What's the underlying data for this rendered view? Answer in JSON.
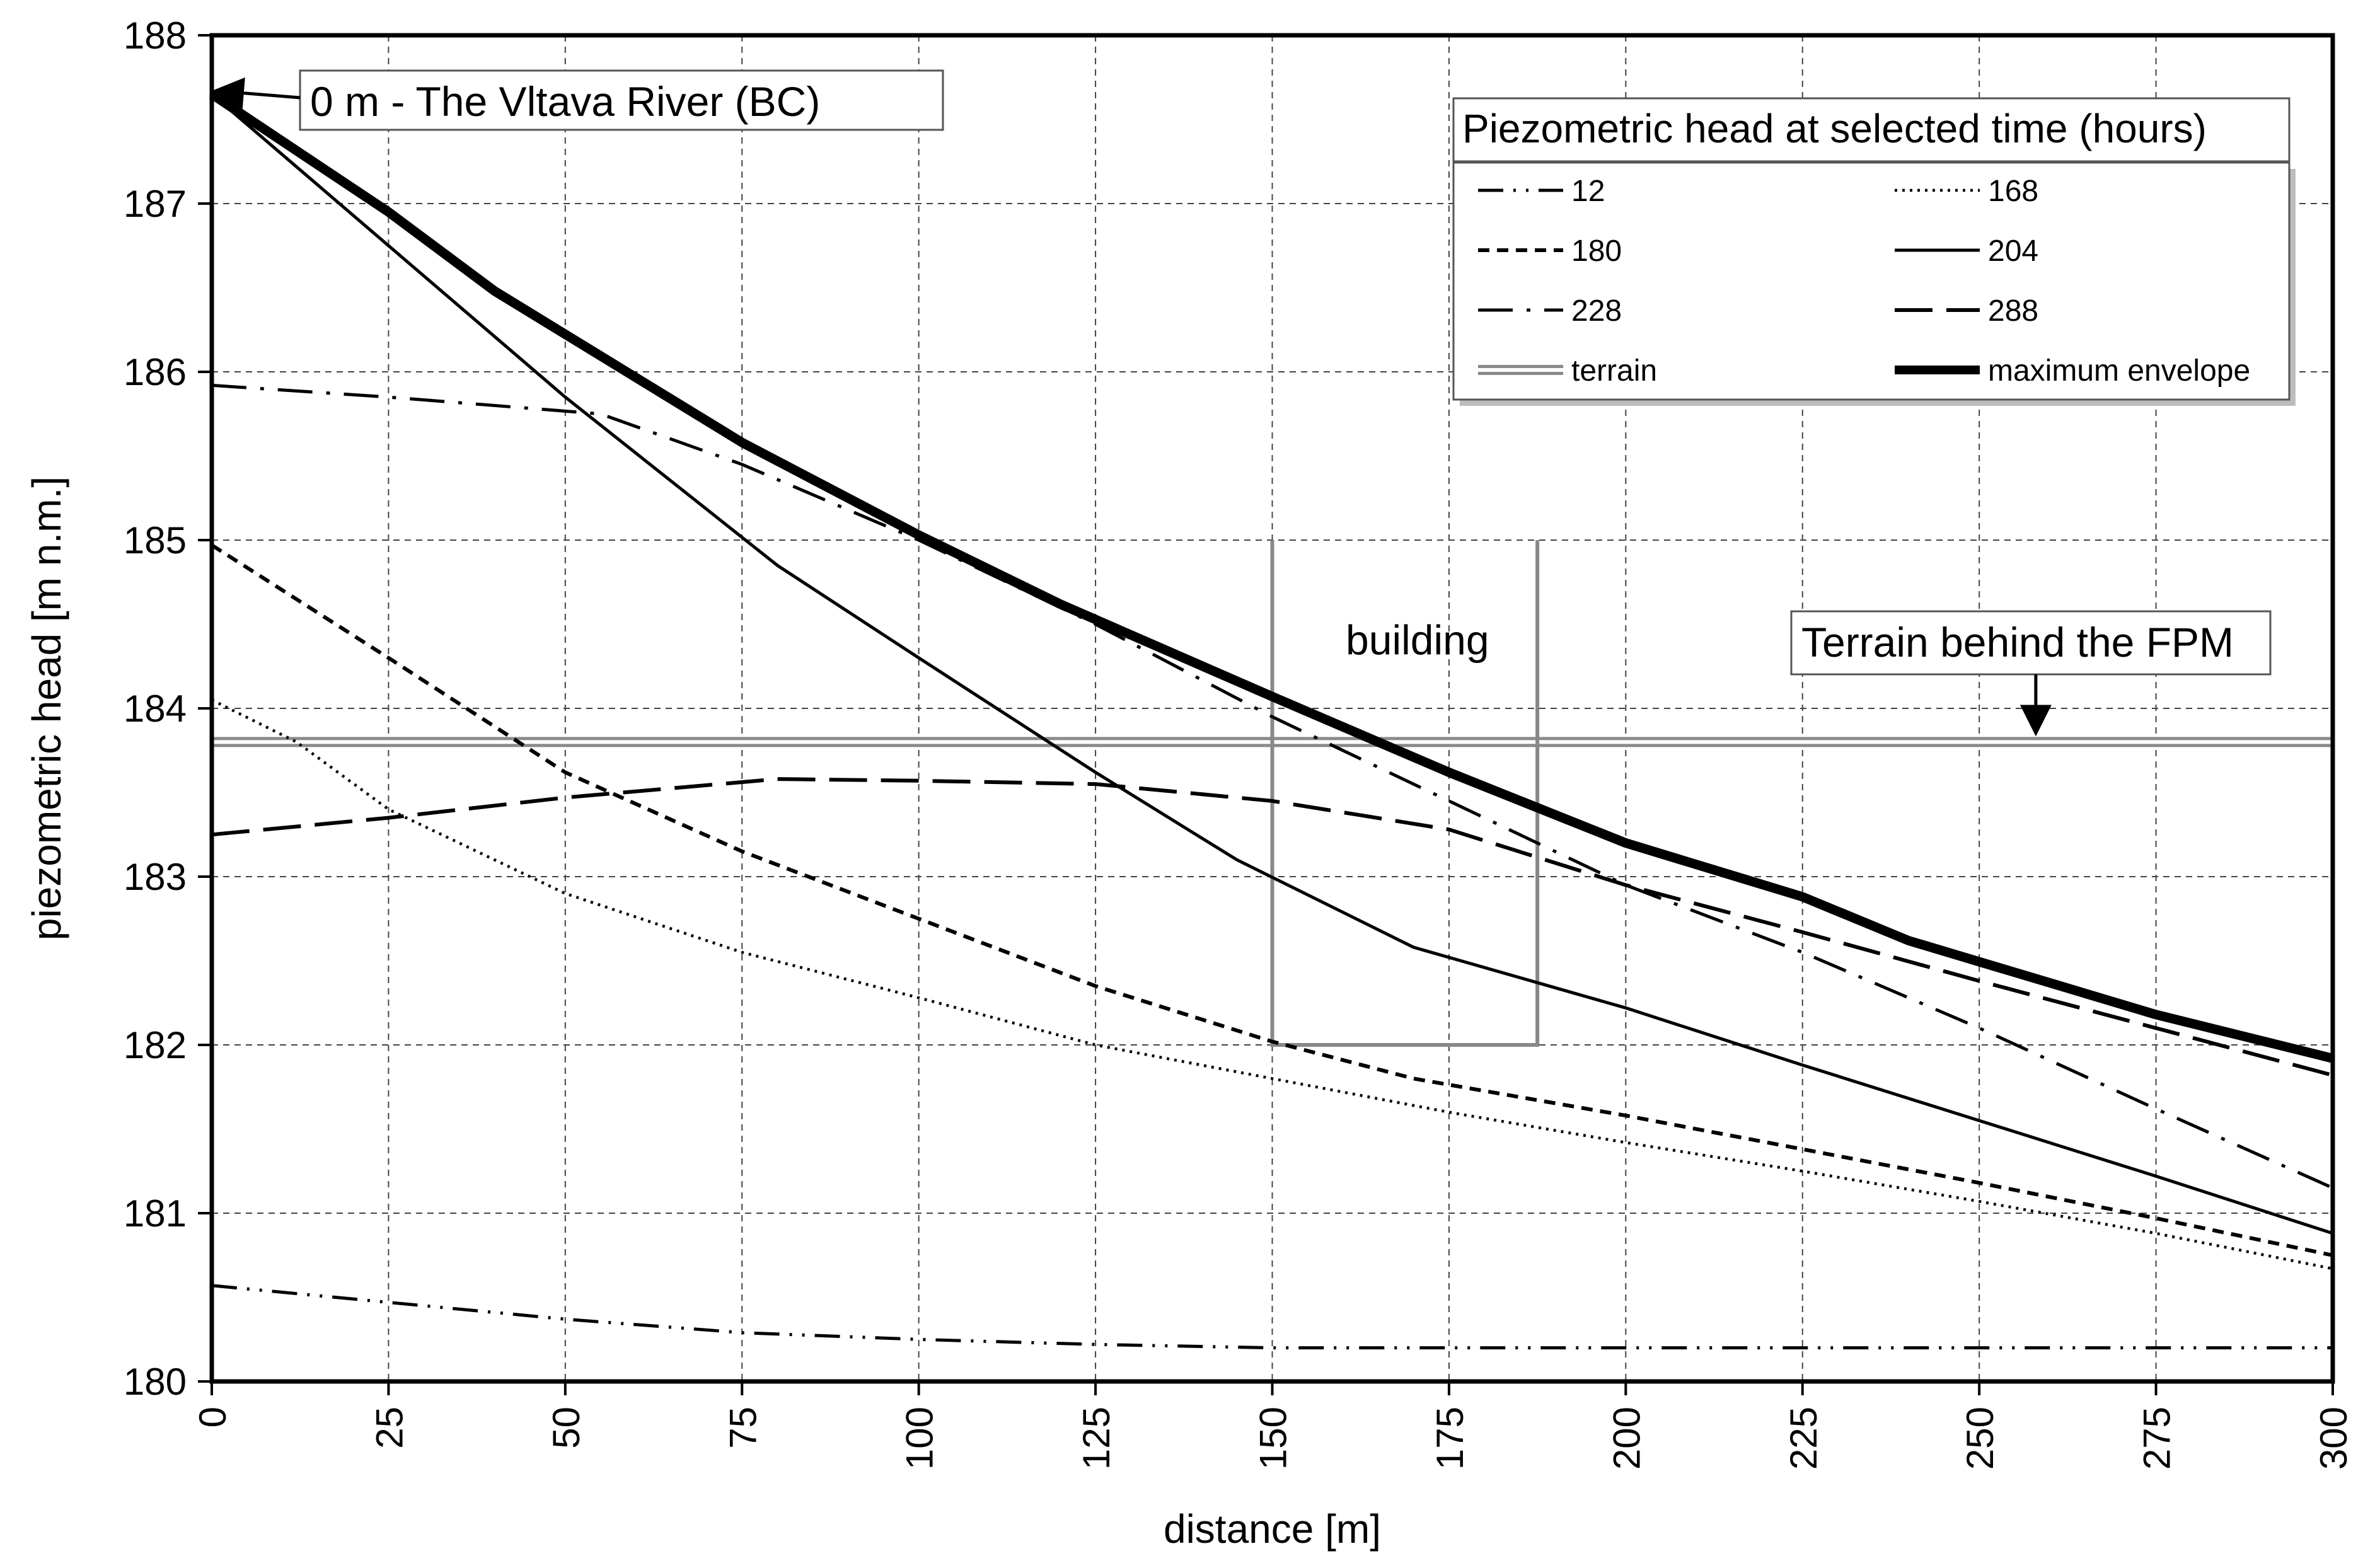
{
  "chart_data": {
    "type": "line",
    "title": "",
    "xlabel": "distance [m]",
    "ylabel": "piezometric head [m n.m.]",
    "xlim": [
      0,
      300
    ],
    "ylim": [
      180,
      188
    ],
    "x_ticks": [
      "0",
      "25",
      "50",
      "75",
      "100",
      "125",
      "150",
      "175",
      "200",
      "225",
      "250",
      "275",
      "300"
    ],
    "y_ticks": [
      "180",
      "181",
      "182",
      "183",
      "184",
      "185",
      "186",
      "187",
      "188"
    ],
    "grid": true,
    "legend": {
      "title": "Piezometric head at selected time (hours)",
      "position": "top-right",
      "entries": [
        "12",
        "168",
        "180",
        "204",
        "228",
        "288",
        "terrain",
        "maximum envelope"
      ]
    },
    "series": [
      {
        "name": "12",
        "style": "dash-dot-dot",
        "points": [
          [
            0,
            180.57
          ],
          [
            25,
            180.47
          ],
          [
            50,
            180.37
          ],
          [
            75,
            180.29
          ],
          [
            100,
            180.25
          ],
          [
            125,
            180.22
          ],
          [
            150,
            180.2
          ],
          [
            175,
            180.2
          ],
          [
            200,
            180.2
          ],
          [
            225,
            180.2
          ],
          [
            250,
            180.2
          ],
          [
            275,
            180.2
          ],
          [
            300,
            180.2
          ]
        ]
      },
      {
        "name": "168",
        "style": "dotted",
        "points": [
          [
            0,
            184.05
          ],
          [
            12,
            183.8
          ],
          [
            25,
            183.4
          ],
          [
            50,
            182.9
          ],
          [
            75,
            182.55
          ],
          [
            100,
            182.28
          ],
          [
            125,
            182.0
          ],
          [
            150,
            181.8
          ],
          [
            175,
            181.6
          ],
          [
            200,
            181.42
          ],
          [
            225,
            181.25
          ],
          [
            250,
            181.07
          ],
          [
            275,
            180.88
          ],
          [
            300,
            180.67
          ]
        ]
      },
      {
        "name": "180",
        "style": "short-dash",
        "points": [
          [
            0,
            184.97
          ],
          [
            25,
            184.3
          ],
          [
            50,
            183.62
          ],
          [
            75,
            183.15
          ],
          [
            100,
            182.75
          ],
          [
            125,
            182.35
          ],
          [
            150,
            182.02
          ],
          [
            170,
            181.8
          ],
          [
            200,
            181.58
          ],
          [
            225,
            181.38
          ],
          [
            250,
            181.18
          ],
          [
            275,
            180.97
          ],
          [
            300,
            180.75
          ]
        ]
      },
      {
        "name": "204",
        "style": "solid",
        "points": [
          [
            0,
            187.65
          ],
          [
            25,
            186.75
          ],
          [
            50,
            185.85
          ],
          [
            80,
            184.85
          ],
          [
            100,
            184.3
          ],
          [
            125,
            183.62
          ],
          [
            145,
            183.1
          ],
          [
            170,
            182.58
          ],
          [
            200,
            182.22
          ],
          [
            225,
            181.88
          ],
          [
            250,
            181.55
          ],
          [
            275,
            181.22
          ],
          [
            300,
            180.88
          ]
        ]
      },
      {
        "name": "228",
        "style": "dash-dot",
        "points": [
          [
            0,
            185.92
          ],
          [
            25,
            185.85
          ],
          [
            55,
            185.75
          ],
          [
            75,
            185.45
          ],
          [
            100,
            185.0
          ],
          [
            125,
            184.5
          ],
          [
            150,
            183.95
          ],
          [
            175,
            183.45
          ],
          [
            200,
            182.95
          ],
          [
            225,
            182.55
          ],
          [
            250,
            182.1
          ],
          [
            275,
            181.62
          ],
          [
            300,
            181.15
          ]
        ]
      },
      {
        "name": "288",
        "style": "long-dash",
        "points": [
          [
            0,
            183.25
          ],
          [
            25,
            183.35
          ],
          [
            50,
            183.47
          ],
          [
            80,
            183.58
          ],
          [
            100,
            183.57
          ],
          [
            125,
            183.55
          ],
          [
            150,
            183.45
          ],
          [
            175,
            183.28
          ],
          [
            200,
            182.95
          ],
          [
            225,
            182.67
          ],
          [
            250,
            182.38
          ],
          [
            275,
            182.1
          ],
          [
            300,
            181.82
          ]
        ]
      },
      {
        "name": "maximum envelope",
        "style": "thick",
        "points": [
          [
            0,
            187.65
          ],
          [
            25,
            186.95
          ],
          [
            40,
            186.48
          ],
          [
            75,
            185.58
          ],
          [
            100,
            185.03
          ],
          [
            120,
            184.62
          ],
          [
            150,
            184.07
          ],
          [
            175,
            183.62
          ],
          [
            200,
            183.2
          ],
          [
            225,
            182.88
          ],
          [
            240,
            182.62
          ],
          [
            275,
            182.18
          ],
          [
            300,
            181.92
          ]
        ]
      },
      {
        "name": "terrain",
        "style": "double-gray",
        "points": [
          [
            0,
            183.8
          ],
          [
            300,
            183.8
          ]
        ]
      }
    ],
    "building": {
      "label": "building",
      "x_left": 150,
      "x_right": 187.5,
      "y_bottom": 182.0,
      "y_top": 185.0
    },
    "annotations": [
      {
        "id": "river",
        "text": "0 m - The Vltava River (BC)",
        "target": [
          0,
          187.65
        ]
      },
      {
        "id": "terrain",
        "text": "Terrain behind the FPM",
        "target": [
          258,
          183.8
        ]
      }
    ]
  }
}
